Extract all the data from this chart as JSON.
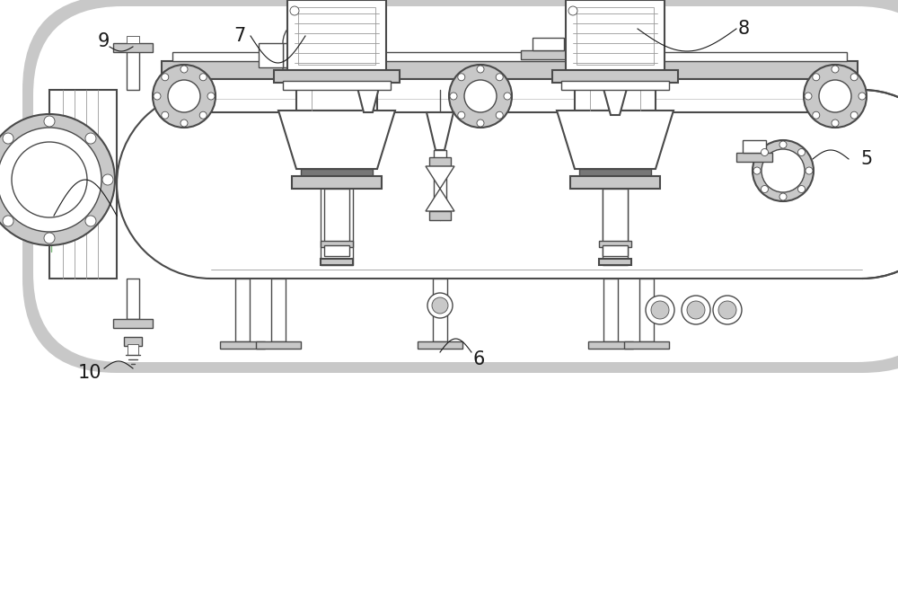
{
  "bg_color": "#ffffff",
  "line_color": "#4a4a4a",
  "light_gray": "#c8c8c8",
  "mid_gray": "#999999",
  "dark_gray": "#777777",
  "border_color": "#3a3a3a"
}
